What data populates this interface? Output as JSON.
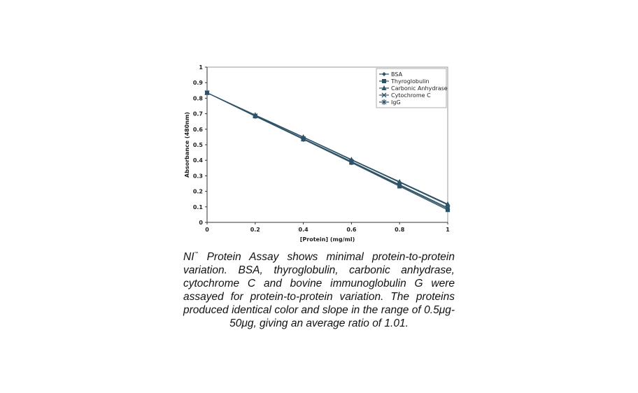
{
  "chart_data": {
    "type": "line",
    "xlabel": "[Protein] (mg/ml)",
    "ylabel": "Absorbance (480nm)",
    "xlim": [
      0,
      1
    ],
    "ylim": [
      0,
      1
    ],
    "x_ticks": [
      "0",
      "0.2",
      "0.4",
      "0.6",
      "0.8",
      "1"
    ],
    "y_ticks": [
      "0",
      "0.1",
      "0.2",
      "0.3",
      "0.4",
      "0.5",
      "0.6",
      "0.7",
      "0.8",
      "0.9",
      "1"
    ],
    "x": [
      0,
      0.2,
      0.4,
      0.6,
      0.8,
      1
    ],
    "legend_position": "top-right",
    "grid": false,
    "series": [
      {
        "name": "BSA",
        "marker": "diamond",
        "values": [
          0.835,
          0.69,
          0.548,
          0.402,
          0.258,
          0.113
        ]
      },
      {
        "name": "Thyroglobulin",
        "marker": "square",
        "values": [
          0.835,
          0.684,
          0.535,
          0.385,
          0.232,
          0.08
        ]
      },
      {
        "name": "Carbonic Anhydrase",
        "marker": "triangle",
        "values": [
          0.835,
          0.692,
          0.55,
          0.405,
          0.262,
          0.118
        ]
      },
      {
        "name": "Cytochrome C",
        "marker": "x",
        "values": [
          0.835,
          0.687,
          0.54,
          0.392,
          0.243,
          0.095
        ]
      },
      {
        "name": "IgG",
        "marker": "star",
        "values": [
          0.835,
          0.685,
          0.537,
          0.388,
          0.238,
          0.088
        ]
      }
    ],
    "series_color": "#2f5366"
  },
  "caption": {
    "nl": "NI",
    "tm": "™",
    "text": " Protein Assay shows minimal protein-to-protein variation. BSA, thyroglobulin, carbonic anhydrase, cytochrome C and bovine immunoglobulin G were assayed for protein-to-protein variation. The proteins produced identical color and slope in the range of 0.5μg-50μg, giving an average ratio of 1.01."
  }
}
